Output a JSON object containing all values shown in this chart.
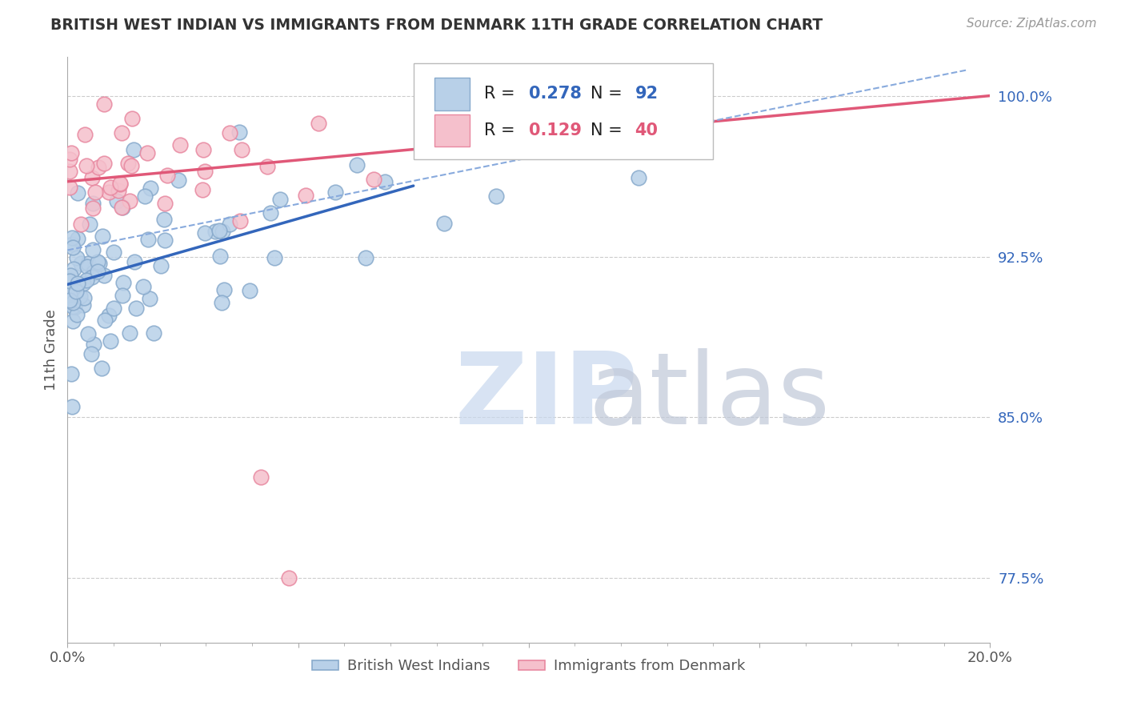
{
  "title": "BRITISH WEST INDIAN VS IMMIGRANTS FROM DENMARK 11TH GRADE CORRELATION CHART",
  "source": "Source: ZipAtlas.com",
  "ylabel": "11th Grade",
  "ylabel_ticks": [
    77.5,
    85.0,
    92.5,
    100.0
  ],
  "ylabel_tick_labels": [
    "77.5%",
    "85.0%",
    "92.5%",
    "100.0%"
  ],
  "xmin": 0.0,
  "xmax": 20.0,
  "ymin": 74.5,
  "ymax": 101.8,
  "blue_R": 0.278,
  "blue_N": 92,
  "pink_R": 0.129,
  "pink_N": 40,
  "blue_color": "#b8d0e8",
  "blue_edge": "#88aacc",
  "pink_color": "#f5c0cc",
  "pink_edge": "#e888a0",
  "blue_line_color": "#3366bb",
  "pink_line_color": "#e05878",
  "dashed_line_color": "#88aadd",
  "legend_label_blue": "British West Indians",
  "legend_label_pink": "Immigrants from Denmark",
  "blue_line_x0": 0.0,
  "blue_line_x1": 7.5,
  "blue_line_y0": 91.2,
  "blue_line_y1": 95.8,
  "pink_line_x0": 0.0,
  "pink_line_x1": 20.0,
  "pink_line_y0": 96.0,
  "pink_line_y1": 100.0,
  "dashed_line_x0": 0.0,
  "dashed_line_x1": 19.5,
  "dashed_line_y0": 92.8,
  "dashed_line_y1": 101.2
}
